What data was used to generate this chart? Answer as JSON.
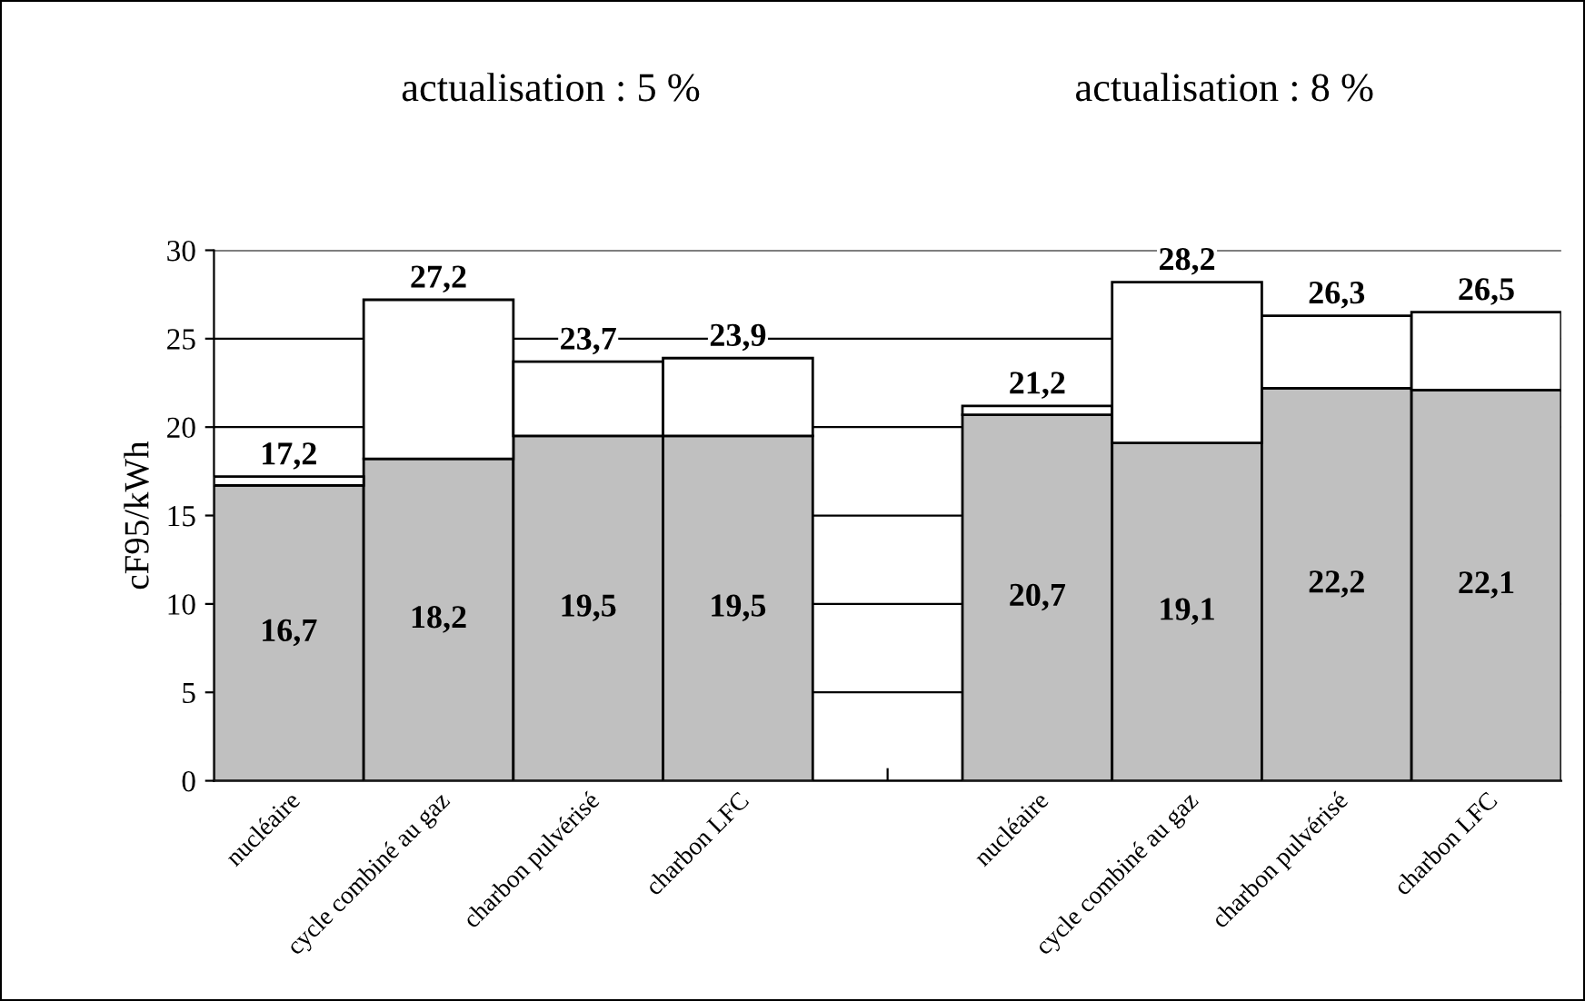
{
  "chart_data": {
    "type": "bar",
    "stacked": true,
    "ylabel": "cF95/kWh",
    "annotations": [
      "actualisation : 5 %",
      "actualisation : 8 %"
    ],
    "categories": [
      "nucléaire",
      "cycle combiné au gaz",
      "charbon pulvérisé",
      "charbon LFC",
      null,
      "nucléaire",
      "cycle combiné au gaz",
      "charbon pulvérisé",
      "charbon LFC"
    ],
    "series": [
      {
        "color": "#c0c0c0",
        "values": [
          16.7,
          18.2,
          19.5,
          19.5,
          null,
          20.7,
          19.1,
          22.2,
          22.1
        ],
        "value_labels": [
          "16,7",
          "18,2",
          "19,5",
          "19,5",
          null,
          "20,7",
          "19,1",
          "22,2",
          "22,1"
        ]
      },
      {
        "color": "#ffffff",
        "values": [
          0.5,
          9.0,
          4.2,
          4.4,
          null,
          0.5,
          9.1,
          4.1,
          4.4
        ]
      }
    ],
    "totals": [
      "17,2",
      "27,2",
      "23,7",
      "23,9",
      null,
      "21,2",
      "28,2",
      "26,3",
      "26,5"
    ],
    "ylim": [
      0,
      30
    ],
    "yticks": [
      0,
      5,
      10,
      15,
      20,
      25,
      30
    ],
    "grid": "y"
  }
}
